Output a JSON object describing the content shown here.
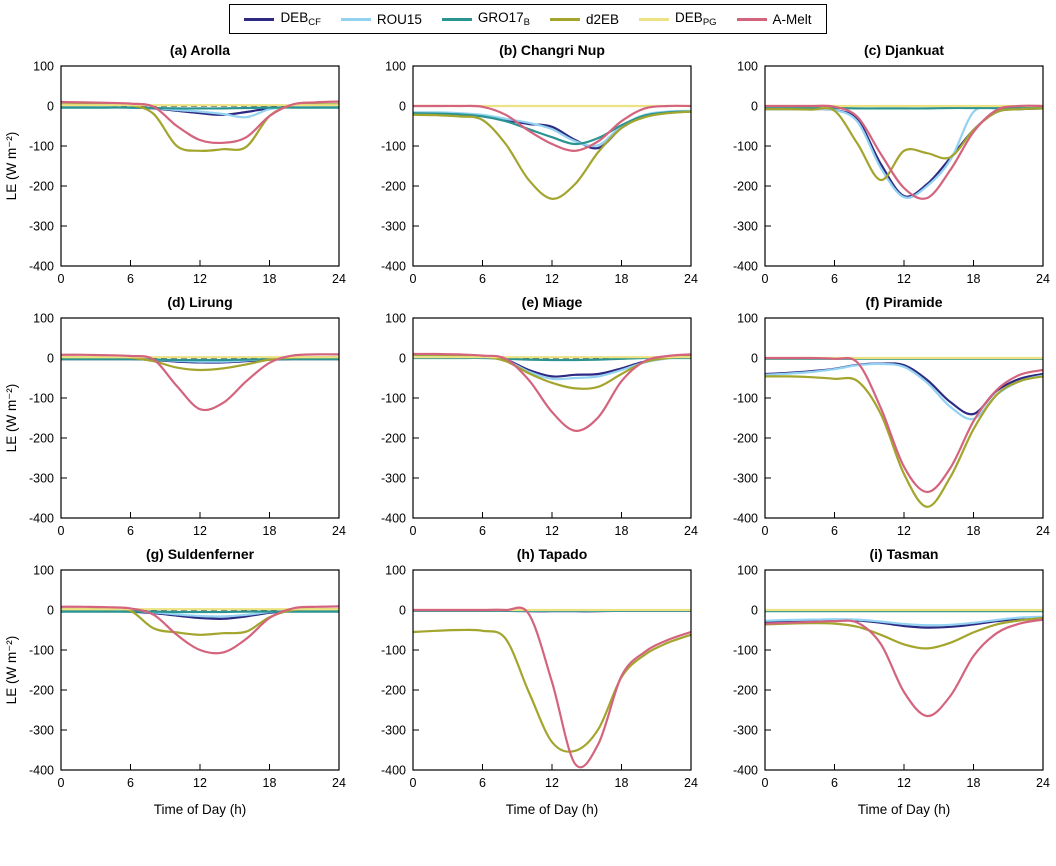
{
  "legend": {
    "items": [
      {
        "name": "DEB_CF",
        "label": "DEB",
        "sub": "CF",
        "color": "#2e2a84"
      },
      {
        "name": "ROU15",
        "label": "ROU15",
        "sub": "",
        "color": "#93d3f1"
      },
      {
        "name": "GRO17_B",
        "label": "GRO17",
        "sub": "B",
        "color": "#2a9492"
      },
      {
        "name": "d2EB",
        "label": "d2EB",
        "sub": "",
        "color": "#a3a52d"
      },
      {
        "name": "DEB_PG",
        "label": "DEB",
        "sub": "PG",
        "color": "#ede283"
      },
      {
        "name": "A-Melt",
        "label": "A-Melt",
        "sub": "",
        "color": "#d4647e"
      }
    ]
  },
  "axes": {
    "ylabel": "LE (W m⁻²)",
    "xlabel": "Time of Day (h)",
    "xticks": [
      0,
      6,
      12,
      18,
      24
    ],
    "yticks": [
      100,
      0,
      -100,
      -200,
      -300,
      -400
    ],
    "xlim": [
      0,
      24
    ],
    "ylim": [
      -400,
      100
    ],
    "zero_line_dashed": true
  },
  "chart_data": [
    {
      "type": "line",
      "title": "(a) Arolla",
      "x": [
        0,
        2,
        4,
        6,
        8,
        10,
        12,
        14,
        16,
        18,
        20,
        22,
        24
      ],
      "series": [
        {
          "name": "DEB_CF",
          "values": [
            -3,
            -3,
            -3,
            -4,
            -6,
            -12,
            -18,
            -22,
            -15,
            -6,
            -3,
            -3,
            -3
          ]
        },
        {
          "name": "ROU15",
          "values": [
            -3,
            -3,
            -3,
            -4,
            -5,
            -10,
            -14,
            -20,
            -28,
            -8,
            -3,
            -3,
            -3
          ]
        },
        {
          "name": "GRO17_B",
          "values": [
            -4,
            -4,
            -4,
            -4,
            -5,
            -6,
            -6,
            -6,
            -5,
            -4,
            -4,
            -4,
            -4
          ]
        },
        {
          "name": "d2EB",
          "values": [
            4,
            4,
            4,
            2,
            -20,
            -100,
            -112,
            -108,
            -102,
            -25,
            2,
            4,
            4
          ]
        },
        {
          "name": "DEB_PG",
          "values": [
            2,
            2,
            2,
            2,
            2,
            2,
            2,
            2,
            2,
            2,
            2,
            2,
            2
          ]
        },
        {
          "name": "A-Melt",
          "values": [
            10,
            9,
            8,
            6,
            -2,
            -50,
            -85,
            -92,
            -78,
            -25,
            4,
            9,
            11
          ]
        }
      ]
    },
    {
      "type": "line",
      "title": "(b) Changri Nup",
      "x": [
        0,
        2,
        4,
        6,
        8,
        10,
        12,
        14,
        16,
        18,
        20,
        22,
        24
      ],
      "series": [
        {
          "name": "DEB_CF",
          "values": [
            -18,
            -18,
            -20,
            -24,
            -35,
            -45,
            -52,
            -85,
            -105,
            -55,
            -25,
            -15,
            -13
          ]
        },
        {
          "name": "ROU15",
          "values": [
            -16,
            -16,
            -18,
            -22,
            -32,
            -42,
            -58,
            -88,
            -98,
            -50,
            -22,
            -14,
            -12
          ]
        },
        {
          "name": "GRO17_B",
          "values": [
            -18,
            -19,
            -21,
            -26,
            -38,
            -58,
            -78,
            -95,
            -80,
            -48,
            -24,
            -16,
            -14
          ]
        },
        {
          "name": "d2EB",
          "values": [
            -22,
            -23,
            -26,
            -35,
            -95,
            -185,
            -232,
            -195,
            -115,
            -55,
            -28,
            -18,
            -14
          ]
        },
        {
          "name": "DEB_PG",
          "values": [
            0,
            0,
            0,
            0,
            0,
            0,
            0,
            0,
            0,
            0,
            0,
            0,
            0
          ]
        },
        {
          "name": "A-Melt",
          "values": [
            0,
            0,
            0,
            -2,
            -22,
            -62,
            -95,
            -112,
            -88,
            -38,
            -6,
            0,
            0
          ]
        }
      ]
    },
    {
      "type": "line",
      "title": "(c) Djankuat",
      "x": [
        0,
        2,
        4,
        6,
        8,
        10,
        12,
        14,
        16,
        18,
        20,
        22,
        24
      ],
      "series": [
        {
          "name": "DEB_CF",
          "values": [
            -8,
            -8,
            -8,
            -10,
            -35,
            -145,
            -225,
            -195,
            -130,
            -60,
            -15,
            -8,
            -6
          ]
        },
        {
          "name": "ROU15",
          "values": [
            -8,
            -8,
            -8,
            -10,
            -40,
            -155,
            -228,
            -200,
            -135,
            -15,
            -6,
            -5,
            -5
          ]
        },
        {
          "name": "GRO17_B",
          "values": [
            -5,
            -5,
            -5,
            -5,
            -6,
            -6,
            -6,
            -6,
            -5,
            -5,
            -5,
            -5,
            -5
          ]
        },
        {
          "name": "d2EB",
          "values": [
            -8,
            -8,
            -9,
            -12,
            -95,
            -185,
            -112,
            -118,
            -128,
            -60,
            -15,
            -8,
            -6
          ]
        },
        {
          "name": "DEB_PG",
          "values": [
            0,
            0,
            0,
            0,
            0,
            0,
            0,
            0,
            0,
            0,
            0,
            0,
            0
          ]
        },
        {
          "name": "A-Melt",
          "values": [
            0,
            0,
            0,
            -2,
            -28,
            -120,
            -205,
            -230,
            -160,
            -65,
            -10,
            0,
            0
          ]
        }
      ]
    },
    {
      "type": "line",
      "title": "(d) Lirung",
      "x": [
        0,
        2,
        4,
        6,
        8,
        10,
        12,
        14,
        16,
        18,
        20,
        22,
        24
      ],
      "series": [
        {
          "name": "DEB_CF",
          "values": [
            -3,
            -3,
            -3,
            -3,
            -5,
            -9,
            -11,
            -11,
            -8,
            -4,
            -3,
            -3,
            -3
          ]
        },
        {
          "name": "ROU15",
          "values": [
            -2,
            -2,
            -2,
            -2,
            -4,
            -7,
            -9,
            -9,
            -6,
            -3,
            -2,
            -2,
            -2
          ]
        },
        {
          "name": "GRO17_B",
          "values": [
            -3,
            -3,
            -3,
            -3,
            -4,
            -5,
            -5,
            -5,
            -4,
            -3,
            -3,
            -3,
            -3
          ]
        },
        {
          "name": "d2EB",
          "values": [
            2,
            2,
            2,
            1,
            -8,
            -24,
            -30,
            -26,
            -16,
            -4,
            1,
            2,
            2
          ]
        },
        {
          "name": "DEB_PG",
          "values": [
            2,
            2,
            2,
            2,
            2,
            2,
            2,
            2,
            2,
            2,
            2,
            2,
            2
          ]
        },
        {
          "name": "A-Melt",
          "values": [
            8,
            8,
            7,
            5,
            -4,
            -70,
            -128,
            -112,
            -58,
            -12,
            6,
            9,
            9
          ]
        }
      ]
    },
    {
      "type": "line",
      "title": "(e) Miage",
      "x": [
        0,
        2,
        4,
        6,
        8,
        10,
        12,
        14,
        16,
        18,
        20,
        22,
        24
      ],
      "series": [
        {
          "name": "DEB_CF",
          "values": [
            6,
            6,
            5,
            4,
            -4,
            -30,
            -46,
            -42,
            -40,
            -26,
            -9,
            0,
            5
          ]
        },
        {
          "name": "ROU15",
          "values": [
            5,
            5,
            5,
            3,
            -6,
            -34,
            -52,
            -50,
            -46,
            -30,
            -11,
            -1,
            4
          ]
        },
        {
          "name": "GRO17_B",
          "values": [
            0,
            0,
            0,
            0,
            -2,
            -4,
            -5,
            -5,
            -4,
            -2,
            0,
            0,
            0
          ]
        },
        {
          "name": "d2EB",
          "values": [
            8,
            8,
            7,
            4,
            -8,
            -38,
            -62,
            -76,
            -72,
            -40,
            -10,
            0,
            5
          ]
        },
        {
          "name": "DEB_PG",
          "values": [
            2,
            2,
            2,
            2,
            2,
            2,
            2,
            2,
            2,
            2,
            2,
            2,
            2
          ]
        },
        {
          "name": "A-Melt",
          "values": [
            10,
            10,
            9,
            6,
            -2,
            -55,
            -135,
            -182,
            -148,
            -58,
            -8,
            5,
            9
          ]
        }
      ]
    },
    {
      "type": "line",
      "title": "(f) Piramide",
      "x": [
        0,
        2,
        4,
        6,
        8,
        10,
        12,
        14,
        16,
        18,
        20,
        22,
        24
      ],
      "series": [
        {
          "name": "DEB_CF",
          "values": [
            -40,
            -37,
            -33,
            -27,
            -17,
            -14,
            -18,
            -55,
            -110,
            -140,
            -82,
            -52,
            -40
          ]
        },
        {
          "name": "ROU15",
          "values": [
            -42,
            -39,
            -35,
            -28,
            -18,
            -15,
            -22,
            -62,
            -122,
            -152,
            -92,
            -58,
            -44
          ]
        },
        {
          "name": "GRO17_B",
          "values": [
            -2,
            -2,
            -2,
            -2,
            -2,
            -2,
            -2,
            -2,
            -2,
            -2,
            -2,
            -2,
            -2
          ]
        },
        {
          "name": "d2EB",
          "values": [
            -46,
            -46,
            -48,
            -52,
            -58,
            -140,
            -290,
            -372,
            -298,
            -178,
            -92,
            -58,
            -46
          ]
        },
        {
          "name": "DEB_PG",
          "values": [
            0,
            0,
            0,
            0,
            0,
            0,
            0,
            0,
            0,
            0,
            0,
            0,
            0
          ]
        },
        {
          "name": "A-Melt",
          "values": [
            0,
            0,
            0,
            -2,
            -12,
            -125,
            -272,
            -335,
            -275,
            -158,
            -80,
            -42,
            -30
          ]
        }
      ]
    },
    {
      "type": "line",
      "title": "(g) Suldenferner",
      "x": [
        0,
        2,
        4,
        6,
        8,
        10,
        12,
        14,
        16,
        18,
        20,
        22,
        24
      ],
      "series": [
        {
          "name": "DEB_CF",
          "values": [
            -3,
            -3,
            -3,
            -4,
            -8,
            -14,
            -20,
            -22,
            -16,
            -7,
            -3,
            -3,
            -3
          ]
        },
        {
          "name": "ROU15",
          "values": [
            -2,
            -2,
            -2,
            -3,
            -6,
            -11,
            -15,
            -16,
            -12,
            -5,
            -2,
            -2,
            -2
          ]
        },
        {
          "name": "GRO17_B",
          "values": [
            -4,
            -4,
            -4,
            -4,
            -4,
            -5,
            -5,
            -5,
            -4,
            -4,
            -4,
            -4,
            -4
          ]
        },
        {
          "name": "d2EB",
          "values": [
            2,
            2,
            2,
            -2,
            -46,
            -56,
            -62,
            -58,
            -54,
            -18,
            0,
            2,
            2
          ]
        },
        {
          "name": "DEB_PG",
          "values": [
            2,
            2,
            2,
            2,
            2,
            2,
            2,
            2,
            2,
            2,
            2,
            2,
            2
          ]
        },
        {
          "name": "A-Melt",
          "values": [
            8,
            8,
            7,
            4,
            -12,
            -62,
            -100,
            -106,
            -72,
            -20,
            4,
            8,
            9
          ]
        }
      ]
    },
    {
      "type": "line",
      "title": "(h) Tapado",
      "x": [
        0,
        2,
        4,
        6,
        8,
        10,
        12,
        14,
        16,
        18,
        20,
        22,
        24
      ],
      "series": [
        {
          "name": "DEB_CF",
          "values": [
            -2,
            -2,
            -2,
            -2,
            -2,
            -3,
            -3,
            -3,
            -3,
            -2,
            -2,
            -2,
            -2
          ]
        },
        {
          "name": "ROU15",
          "values": [
            -1,
            -1,
            -1,
            -1,
            -1,
            -2,
            -2,
            -2,
            -2,
            -1,
            -1,
            -1,
            -1
          ]
        },
        {
          "name": "GRO17_B",
          "values": [
            -2,
            -2,
            -2,
            -2,
            -2,
            -2,
            -2,
            -2,
            -2,
            -2,
            -2,
            -2,
            -2
          ]
        },
        {
          "name": "d2EB",
          "values": [
            -55,
            -52,
            -50,
            -52,
            -72,
            -205,
            -330,
            -352,
            -298,
            -168,
            -112,
            -82,
            -62
          ]
        },
        {
          "name": "DEB_PG",
          "values": [
            0,
            0,
            0,
            0,
            0,
            0,
            0,
            0,
            0,
            0,
            0,
            0,
            0
          ]
        },
        {
          "name": "A-Melt",
          "values": [
            0,
            0,
            0,
            0,
            0,
            -10,
            -180,
            -385,
            -335,
            -165,
            -105,
            -75,
            -55
          ]
        }
      ]
    },
    {
      "type": "line",
      "title": "(i) Tasman",
      "x": [
        0,
        2,
        4,
        6,
        8,
        10,
        12,
        14,
        16,
        18,
        20,
        22,
        24
      ],
      "series": [
        {
          "name": "DEB_CF",
          "values": [
            -30,
            -28,
            -26,
            -25,
            -26,
            -32,
            -40,
            -44,
            -42,
            -36,
            -28,
            -22,
            -20
          ]
        },
        {
          "name": "ROU15",
          "values": [
            -27,
            -25,
            -24,
            -23,
            -24,
            -29,
            -35,
            -38,
            -37,
            -32,
            -25,
            -19,
            -17
          ]
        },
        {
          "name": "GRO17_B",
          "values": [
            -3,
            -3,
            -3,
            -3,
            -3,
            -3,
            -3,
            -3,
            -3,
            -3,
            -3,
            -3,
            -3
          ]
        },
        {
          "name": "d2EB",
          "values": [
            -36,
            -34,
            -33,
            -34,
            -42,
            -62,
            -86,
            -96,
            -82,
            -56,
            -36,
            -26,
            -20
          ]
        },
        {
          "name": "DEB_PG",
          "values": [
            0,
            0,
            0,
            0,
            0,
            0,
            0,
            0,
            0,
            0,
            0,
            0,
            0
          ]
        },
        {
          "name": "A-Melt",
          "values": [
            -34,
            -32,
            -30,
            -28,
            -32,
            -85,
            -205,
            -265,
            -215,
            -115,
            -58,
            -34,
            -24
          ]
        }
      ]
    }
  ]
}
